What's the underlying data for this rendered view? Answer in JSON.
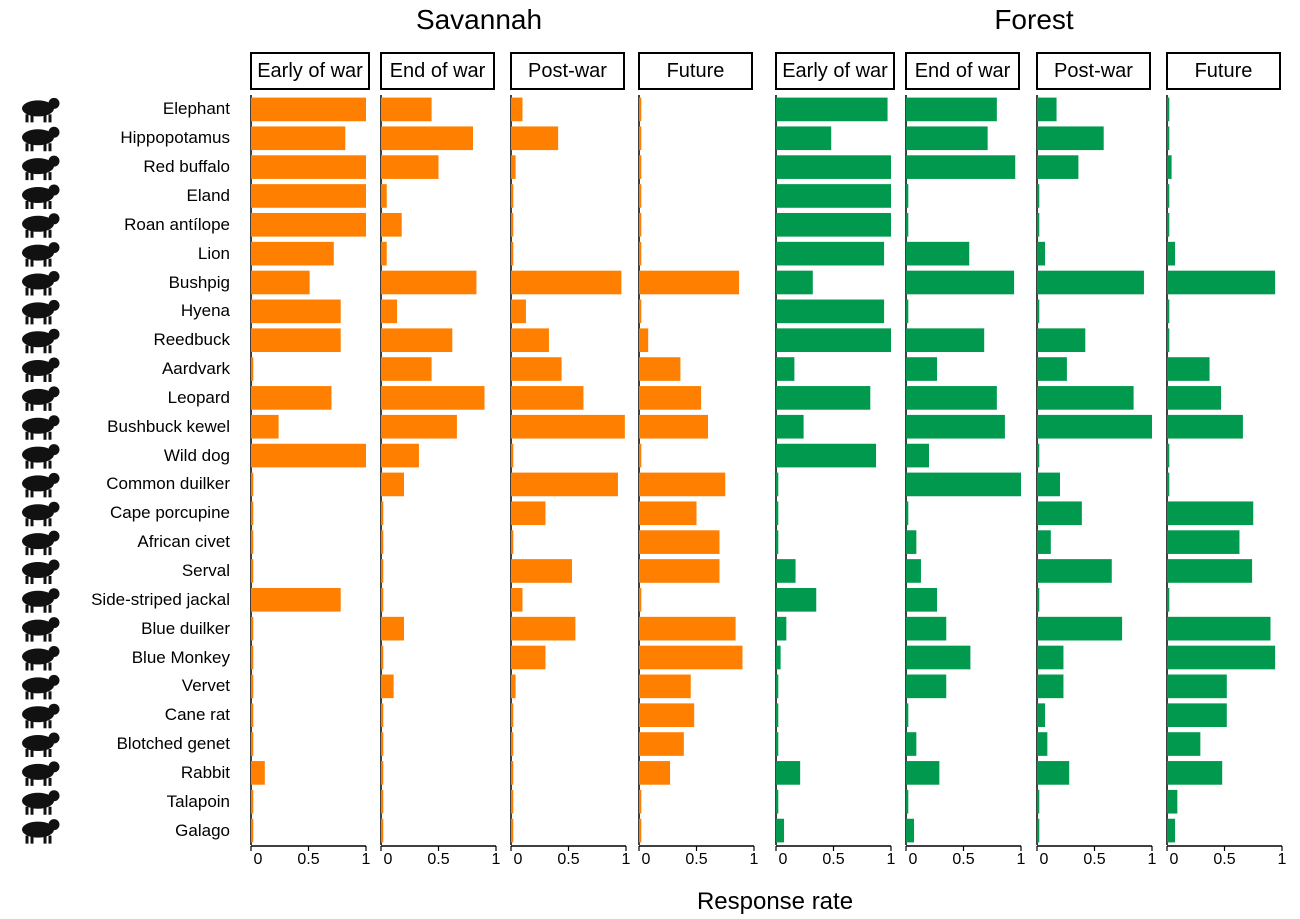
{
  "chart_data": {
    "type": "bar",
    "orientation": "horizontal",
    "xlabel": "Response rate",
    "xlim": [
      0,
      1
    ],
    "xticks": [
      "0",
      "0.5",
      "1"
    ],
    "categories": [
      "Elephant",
      "Hippopotamus",
      "Red buffalo",
      "Eland",
      "Roan antílope",
      "Lion",
      "Bushpig",
      "Hyena",
      "Reedbuck",
      "Aardvark",
      "Leopard",
      "Bushbuck kewel",
      "Wild dog",
      "Common duilker",
      "Cape porcupine",
      "African civet",
      "Serval",
      "Side-striped jackal",
      "Blue duilker",
      "Blue Monkey",
      "Vervet",
      "Cane rat",
      "Blotched genet",
      "Rabbit",
      "Talapoin",
      "Galago"
    ],
    "habitats": [
      {
        "name": "Savannah",
        "color": "#ff8000",
        "periods": [
          {
            "name": "Early of war",
            "values": [
              1.0,
              0.82,
              1.0,
              1.0,
              1.0,
              0.72,
              0.51,
              0.78,
              0.78,
              0.02,
              0.7,
              0.24,
              1.0,
              0.02,
              0.02,
              0.02,
              0.02,
              0.78,
              0.02,
              0.02,
              0.02,
              0.02,
              0.02,
              0.12,
              0.02,
              0.02
            ]
          },
          {
            "name": "End of war",
            "values": [
              0.44,
              0.8,
              0.5,
              0.05,
              0.18,
              0.05,
              0.83,
              0.14,
              0.62,
              0.44,
              0.9,
              0.66,
              0.33,
              0.2,
              0.02,
              0.02,
              0.02,
              0.02,
              0.2,
              0.02,
              0.11,
              0.02,
              0.02,
              0.02,
              0.02,
              0.02
            ]
          },
          {
            "name": "Post-war",
            "values": [
              0.1,
              0.41,
              0.04,
              0.02,
              0.02,
              0.02,
              0.96,
              0.13,
              0.33,
              0.44,
              0.63,
              0.99,
              0.02,
              0.93,
              0.3,
              0.02,
              0.53,
              0.1,
              0.56,
              0.3,
              0.04,
              0.02,
              0.02,
              0.02,
              0.02,
              0.02
            ]
          },
          {
            "name": "Future",
            "values": [
              0.02,
              0.02,
              0.02,
              0.02,
              0.02,
              0.02,
              0.87,
              0.02,
              0.08,
              0.36,
              0.54,
              0.6,
              0.02,
              0.75,
              0.5,
              0.7,
              0.7,
              0.02,
              0.84,
              0.9,
              0.45,
              0.48,
              0.39,
              0.27,
              0.02,
              0.02
            ]
          }
        ]
      },
      {
        "name": "Forest",
        "color": "#00994d",
        "periods": [
          {
            "name": "Early of war",
            "values": [
              0.97,
              0.48,
              1.0,
              1.0,
              1.0,
              0.94,
              0.32,
              0.94,
              1.0,
              0.16,
              0.82,
              0.24,
              0.87,
              0.02,
              0.02,
              0.02,
              0.17,
              0.35,
              0.09,
              0.04,
              0.02,
              0.02,
              0.02,
              0.21,
              0.02,
              0.07
            ]
          },
          {
            "name": "End of war",
            "values": [
              0.79,
              0.71,
              0.95,
              0.02,
              0.02,
              0.55,
              0.94,
              0.02,
              0.68,
              0.27,
              0.79,
              0.86,
              0.2,
              1.0,
              0.02,
              0.09,
              0.13,
              0.27,
              0.35,
              0.56,
              0.35,
              0.02,
              0.09,
              0.29,
              0.02,
              0.07
            ]
          },
          {
            "name": "Post-war",
            "values": [
              0.17,
              0.58,
              0.36,
              0.02,
              0.02,
              0.07,
              0.93,
              0.02,
              0.42,
              0.26,
              0.84,
              1.0,
              0.02,
              0.2,
              0.39,
              0.12,
              0.65,
              0.02,
              0.74,
              0.23,
              0.23,
              0.07,
              0.09,
              0.28,
              0.02,
              0.02
            ]
          },
          {
            "name": "Future",
            "values": [
              0.02,
              0.02,
              0.04,
              0.02,
              0.02,
              0.07,
              0.94,
              0.02,
              0.02,
              0.37,
              0.47,
              0.66,
              0.02,
              0.02,
              0.75,
              0.63,
              0.74,
              0.02,
              0.9,
              0.94,
              0.52,
              0.52,
              0.29,
              0.48,
              0.09,
              0.07
            ]
          }
        ]
      }
    ]
  }
}
